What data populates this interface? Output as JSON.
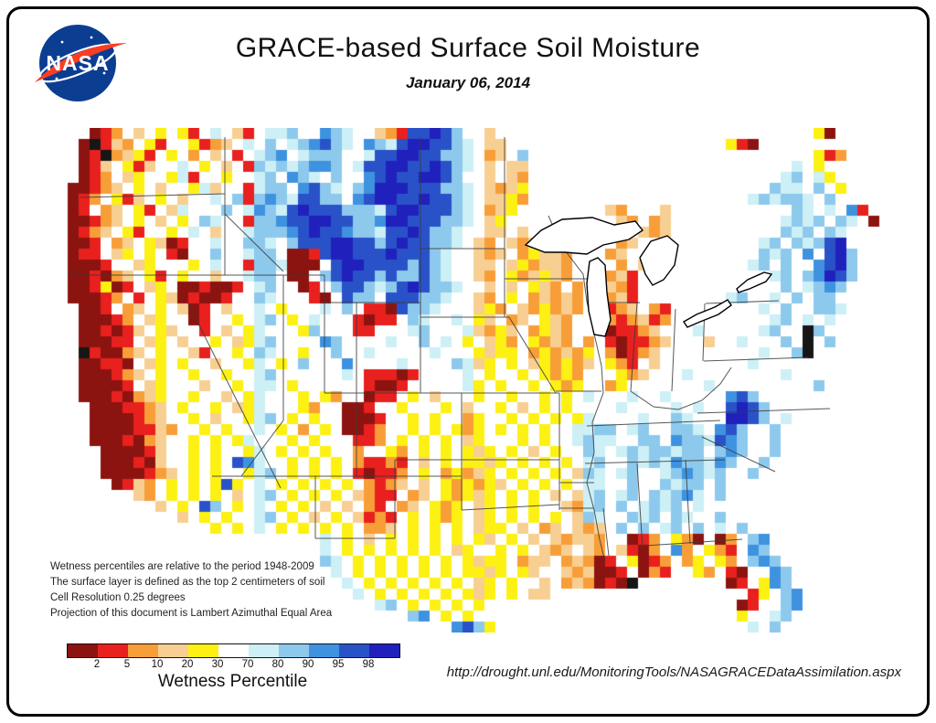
{
  "header": {
    "logo": "NASA",
    "title": "GRACE-based Surface Soil Moisture",
    "date": "January 06, 2014"
  },
  "notes": [
    "Wetness percentiles are relative to the period 1948-2009",
    "The surface layer is defined as the top 2 centimeters of soil",
    "Cell Resolution 0.25 degrees",
    "Projection of this document is Lambert Azimuthal Equal Area"
  ],
  "legend": {
    "title": "Wetness Percentile",
    "tick_labels": [
      "2",
      "5",
      "10",
      "20",
      "30",
      "70",
      "80",
      "90",
      "95",
      "98"
    ],
    "colors": [
      "#8c1410",
      "#e8201e",
      "#f89e38",
      "#f8cf92",
      "#fcf113",
      "#ffffff",
      "#cdeff6",
      "#8dc9ec",
      "#3e92e0",
      "#2a52c8",
      "#2020bc"
    ]
  },
  "source_url": "http://drought.unl.edu/MonitoringTools/NASAGRACEDataAssimilation.aspx",
  "map": {
    "cell_size": 12,
    "palette": {
      "m": "#8c1410",
      "r": "#e8201e",
      "o": "#f89e38",
      "t": "#f8cf92",
      "y": "#fcf113",
      "w": "#ffffff",
      "c": "#cdeff6",
      "l": "#8dc9ec",
      "b": "#3e92e0",
      "B": "#2a52c8",
      "n": "#2020bc",
      "k": "#161616"
    },
    "grid": [
      "...mrowtwywyrwcwtrwcclwwblcwwtorBBnBlwwtw............................ym...",
      "..mkrtowyrwwyrotwcwlwclbBlcwblcBnnBBlcwttw..................wyrm..",
      "..mrkotyrwywowtwrwclbwclllwwcBBnnBBllcwotwl........................wwyrow.",
      "..mrtwyrtwwcwywtwrlclclbblwcBBnnBBnBlcwtwtt......................wwcwyww.",
      "..mrowtywwycrwwywwclwblcwlwwbBnBBnnBlwwtwto......................wclwcyw.",
      ".mmrotwywtwwyctwwrcllwbBlcwlbnnnBBBllcwtoty....................wwlccwlwyw",
      ".mrowyrtwywtwwcwlrlblcBBllwbBnnBBnBBlcwttyo..................wwclcllcwlww",
      ".mrwotwyrwtcwwwlwcblcBnBBBlllcBnnBBBlcwotyw.......towwwtw.........wlcwcwbrww",
      ".mmrotwywtwywlcwwrllbBBnnBBllbnnBBBllcwtyww........towot.........wclclwlcwm.",
      ".mrotwyrwwywcwtwwclllbBnBBbllcBBnBllcwwttwt.........wtot........wwlclwlcww..",
      ".mmrwotwytmrwwcwwllcwlBBBnnBBlBnBBllcwtowtotw.....wot.........wwclwlclBnw..",
      ".mrrwtywywrmwwlwwcllwmmrBnnBBBnBBBlcwwtotwoytto...ot..........wwlclwbwBnlw..",
      ".mmmrwwtywwwywcwwrllcmmmwBnnBBBBlBlcwwttwtyottow..wowt........wclwlwwbBnlw..",
      ".mmrmotwyrwywwtwwcllwmmwlBnBBlBllBlcwwtowyotytow..otrw......ww...clwlbnBlw..",
      ".mmrymrwtywmmrmmrwclwwmrwlBBlclBnBllcwwtwtwytowo..torw......ww...wlwclblww..",
      ".mmmrowrwytmrmmrwwlcwwwrmwBllwBBBllcwwtowywototo..otrww.....wclwwcwlwllww...",
      "..mmrwotwywtmrwtwwcwywwwcwlwrrmBllcwwwtyowtoyoto..rotworw.....wwcwlwwllcww..",
      "..mmmrowtywwmrwwywclwywcwwwrmrrwlcwwcwytwotwyto...orotro......wwwclwcwcww...",
      "..mmrmrtwytwwrwtwycwwwylwwwrrwwwclwwwctoytwoyto...mrrotwwwcwwwwwclwwklww....",
      "..mmmrrwtywtwwywtyclwwwwblwwwwcwwlwcwywtyowyotowo.rmrrotwwwtwwcwwwlwkwlw....",
      "..krmmotwywwtrwwywlcwwywwlwwcwwwwwcwwwytyywoyotoywomrotwwwwwwwwwcwwlkww.....",
      "..mmrrmwtywywwtwwycwywlwwwbwwwwcwwwwlctywywtyoyotwyorwtwwwwwwwwcwwwwwww.....",
      "..mmmrotwywwywwywwclwwwwwwcwrrrmrwwwwcwywwywyoyowwwyotwwwcwwwwwwwwcwwww.....",
      "..mmmmrwtywwwtwwywccwywwwwwwrmmrwwwwwcywywwywyoywwoywwwwwwwcwwwwwwwwwlww....",
      "..mmmrmotywwywwtwycwwwywyowwmrrwywtwwwywwywwywywcwwwcwwcwwwwwbBlwwwwwwww....",
      "...mmmrrotwywwywtycwwwyowwmmrwwywwwywtwwywtwywywwwwcwwwwcwcwwBnBlwwwwww.....",
      "...mmmmrotwwywtwwyclwywywwmmmrwwywywwoywwywywywycwwwwcwwlcwwwnnBlwcww.......",
      "...mmmmrrtowwywywwcwywowywmmrowwywywyoywywywywwccllwclwwllcwbBlwwlww........",
      "...mmmrmotwwywywycwwwywywwwrrowywywywtywwwywywwclccwwllwbllcBblwwlw.........",
      "....mmmmrtwwywywwycwywywywwowwyowywywytywywtwywwlcwclcllcllwlblwwl..........",
      "....mmmrmtwwywywBbcwwywywyworrorwtwywyytywywywywclwwlclcbllcblwwl...........",
      "....mmmmrotwywywwyclwywywywrmrrowywoyotywywywywtlcwclwwclblclwwl............",
      ".....mrtowywywyBywcwywywywyworotwtwyoyoytwywywywccwwlwwlcllwlww.............",
      ".......towywywywtwclwywywywtorrwotwyoytywywywtwtclwclwlclbcwlw..............",
      ".........twywBlwywcwywywtwtworwotwyoywtywywywwtoclwlwclclwcwww..............",
      "...........twywywwclwywtwywtrorwywyoywtywywywywtlcwwlclwlcwwlww.............",
      "..............ywywcwywywywywootwywywywtyywtwotwtotwlwlwclwlwcwl.............",
      ".......................wcwywtwywywywywytwywtwtottowwmrowyomwmowlb..........",
      "........................cwywywywywywtywwywywtotwtowtrmowbowyorwbl..........",
      "........................lcwywywywywywytyywottwotomrwymrowoywyowlbl.........",
      ".........................cwywywywywywyytywytwwtotmmrwmorwwyo.rmwwbl........",
      "..........................cwywywywywywtywywwtwotomrmk........mrwybl........",
      "...........................cwywywywywytywywtt..................rywlb.......",
      ".............................clwywywywy.......................mrwwlb.......",
      "................................lbwywy........................ywwcl........",
      "....................................bBly.......................cwl........."
    ]
  }
}
